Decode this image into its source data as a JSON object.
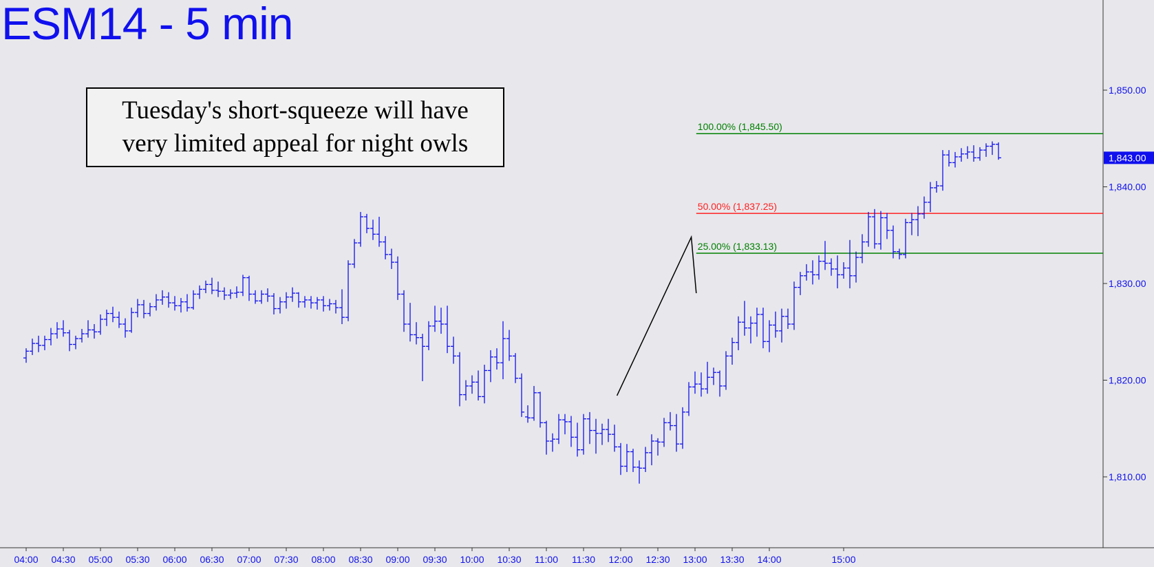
{
  "title": "ESM14 - 5 min",
  "annotation": {
    "line1": "Tuesday's short-squeeze will have",
    "line2": "very limited appeal for night owls"
  },
  "colors": {
    "background": "#e8e8ec",
    "bars": "#1010ee",
    "title": "#1010ee",
    "fib_green": "#008000",
    "fib_red": "#ff2020",
    "pattern_line": "#000000",
    "last_price_bg": "#1010ee"
  },
  "chart_data": {
    "type": "ohlc",
    "title": "ESM14 - 5 min",
    "y_axis": {
      "side": "right",
      "ticks": [
        1810,
        1820,
        1830,
        1840,
        1850
      ],
      "tick_labels": [
        "1,810.00",
        "1,820.00",
        "1,830.00",
        "1,840.00",
        "1,850.00"
      ],
      "range": [
        1802.7,
        1859.0
      ]
    },
    "x_axis": {
      "ticks": [
        "04:00",
        "04:30",
        "05:00",
        "05:30",
        "06:00",
        "06:30",
        "07:00",
        "07:30",
        "08:00",
        "08:30",
        "09:00",
        "09:30",
        "10:00",
        "10:30",
        "11:00",
        "11:30",
        "12:00",
        "12:30",
        "13:00",
        "13:30",
        "14:00",
        "15:00"
      ],
      "tick_minutes": [
        240,
        270,
        300,
        330,
        360,
        390,
        420,
        450,
        480,
        510,
        540,
        570,
        600,
        630,
        660,
        690,
        720,
        750,
        780,
        810,
        840,
        900
      ]
    },
    "last_price": {
      "value": 1843.0,
      "label": "1,843.00"
    },
    "fib_levels": [
      {
        "label": "100.00% (1,845.50)",
        "value": 1845.5,
        "color": "green"
      },
      {
        "label": "50.00% (1,837.25)",
        "value": 1837.25,
        "color": "red"
      },
      {
        "label": "25.00% (1,833.13)",
        "value": 1833.13,
        "color": "green"
      }
    ],
    "fib_start_minute": 781,
    "abc_pattern": [
      {
        "minute": 717,
        "price": 1818.4
      },
      {
        "minute": 777,
        "price": 1834.8
      },
      {
        "minute": 781,
        "price": 1829.0
      }
    ],
    "ohlc_start_minute": 240,
    "ohlc_interval_minutes": 5,
    "bars": [
      [
        1822.3,
        1823.3,
        1821.8,
        1823.0
      ],
      [
        1823.0,
        1824.3,
        1822.6,
        1823.8
      ],
      [
        1823.8,
        1824.6,
        1822.9,
        1823.6
      ],
      [
        1823.6,
        1824.6,
        1823.1,
        1824.2
      ],
      [
        1824.2,
        1825.4,
        1823.6,
        1824.8
      ],
      [
        1824.8,
        1826.0,
        1824.3,
        1825.3
      ],
      [
        1825.3,
        1826.2,
        1824.5,
        1824.9
      ],
      [
        1824.9,
        1825.2,
        1823.0,
        1823.7
      ],
      [
        1823.7,
        1824.6,
        1823.2,
        1824.3
      ],
      [
        1824.3,
        1825.3,
        1823.9,
        1824.8
      ],
      [
        1824.8,
        1826.2,
        1824.4,
        1825.2
      ],
      [
        1825.2,
        1825.8,
        1824.3,
        1825.0
      ],
      [
        1825.0,
        1826.8,
        1824.7,
        1826.3
      ],
      [
        1826.3,
        1827.3,
        1825.6,
        1826.9
      ],
      [
        1826.9,
        1827.6,
        1826.0,
        1826.5
      ],
      [
        1826.5,
        1827.1,
        1825.4,
        1825.8
      ],
      [
        1825.8,
        1826.4,
        1824.4,
        1825.1
      ],
      [
        1825.1,
        1827.5,
        1824.9,
        1827.0
      ],
      [
        1827.0,
        1828.4,
        1826.5,
        1827.8
      ],
      [
        1827.8,
        1828.3,
        1826.4,
        1826.9
      ],
      [
        1826.9,
        1828.0,
        1826.6,
        1827.6
      ],
      [
        1827.6,
        1828.9,
        1827.2,
        1828.3
      ],
      [
        1828.3,
        1829.3,
        1827.8,
        1828.6
      ],
      [
        1828.6,
        1829.1,
        1827.5,
        1828.0
      ],
      [
        1828.0,
        1828.7,
        1827.2,
        1827.7
      ],
      [
        1827.7,
        1828.5,
        1827.0,
        1828.1
      ],
      [
        1828.1,
        1828.9,
        1827.1,
        1827.5
      ],
      [
        1827.5,
        1829.3,
        1827.3,
        1828.9
      ],
      [
        1828.9,
        1829.8,
        1828.4,
        1829.4
      ],
      [
        1829.4,
        1830.3,
        1829.0,
        1829.9
      ],
      [
        1829.9,
        1830.6,
        1828.9,
        1829.3
      ],
      [
        1829.3,
        1830.2,
        1828.6,
        1829.2
      ],
      [
        1829.2,
        1829.6,
        1828.3,
        1828.8
      ],
      [
        1828.8,
        1829.4,
        1828.4,
        1829.0
      ],
      [
        1829.0,
        1829.7,
        1828.5,
        1829.1
      ],
      [
        1829.1,
        1830.9,
        1828.7,
        1830.6
      ],
      [
        1830.6,
        1830.8,
        1828.2,
        1828.9
      ],
      [
        1828.9,
        1829.3,
        1827.9,
        1828.2
      ],
      [
        1828.2,
        1829.3,
        1827.9,
        1828.9
      ],
      [
        1828.9,
        1829.5,
        1828.1,
        1828.7
      ],
      [
        1828.7,
        1829.0,
        1826.8,
        1827.4
      ],
      [
        1827.4,
        1828.6,
        1826.9,
        1828.1
      ],
      [
        1828.1,
        1829.1,
        1827.4,
        1828.6
      ],
      [
        1828.6,
        1829.6,
        1828.1,
        1829.0
      ],
      [
        1829.0,
        1829.1,
        1827.5,
        1828.1
      ],
      [
        1828.1,
        1828.7,
        1827.5,
        1828.3
      ],
      [
        1828.3,
        1828.7,
        1827.4,
        1828.0
      ],
      [
        1828.0,
        1828.6,
        1827.3,
        1828.3
      ],
      [
        1828.3,
        1828.7,
        1827.1,
        1827.7
      ],
      [
        1827.7,
        1828.4,
        1827.2,
        1827.9
      ],
      [
        1827.9,
        1828.3,
        1826.9,
        1827.5
      ],
      [
        1827.5,
        1829.4,
        1825.8,
        1826.5
      ],
      [
        1826.5,
        1832.4,
        1826.1,
        1832.0
      ],
      [
        1832.0,
        1834.6,
        1831.6,
        1834.2
      ],
      [
        1834.2,
        1837.4,
        1833.8,
        1836.9
      ],
      [
        1836.9,
        1837.2,
        1835.2,
        1835.7
      ],
      [
        1835.7,
        1836.6,
        1834.5,
        1835.1
      ],
      [
        1835.1,
        1836.9,
        1833.8,
        1834.3
      ],
      [
        1834.3,
        1834.9,
        1832.5,
        1833.0
      ],
      [
        1833.0,
        1833.6,
        1831.5,
        1832.2
      ],
      [
        1832.2,
        1832.8,
        1828.3,
        1828.9
      ],
      [
        1828.9,
        1829.3,
        1825.0,
        1825.8
      ],
      [
        1825.8,
        1828.0,
        1824.0,
        1824.7
      ],
      [
        1824.7,
        1826.0,
        1823.7,
        1824.4
      ],
      [
        1824.4,
        1824.8,
        1819.9,
        1823.5
      ],
      [
        1823.5,
        1826.1,
        1823.1,
        1825.6
      ],
      [
        1825.6,
        1827.7,
        1825.0,
        1826.1
      ],
      [
        1826.1,
        1827.5,
        1824.8,
        1825.8
      ],
      [
        1825.8,
        1827.7,
        1822.8,
        1823.5
      ],
      [
        1823.5,
        1824.5,
        1821.7,
        1822.5
      ],
      [
        1822.5,
        1822.9,
        1817.3,
        1818.5
      ],
      [
        1818.5,
        1820.0,
        1817.9,
        1819.4
      ],
      [
        1819.4,
        1820.5,
        1818.6,
        1819.8
      ],
      [
        1819.8,
        1821.0,
        1817.9,
        1818.3
      ],
      [
        1818.3,
        1821.6,
        1817.6,
        1821.0
      ],
      [
        1821.0,
        1823.1,
        1819.8,
        1822.4
      ],
      [
        1822.4,
        1823.3,
        1821.1,
        1821.8
      ],
      [
        1821.8,
        1826.1,
        1820.1,
        1824.3
      ],
      [
        1824.3,
        1825.2,
        1822.0,
        1822.5
      ],
      [
        1822.5,
        1822.8,
        1819.7,
        1820.2
      ],
      [
        1820.2,
        1820.7,
        1816.2,
        1816.7
      ],
      [
        1816.2,
        1817.4,
        1815.6,
        1816.1
      ],
      [
        1816.1,
        1819.4,
        1815.8,
        1818.7
      ],
      [
        1818.7,
        1818.8,
        1815.1,
        1815.6
      ],
      [
        1815.6,
        1815.8,
        1812.3,
        1813.7
      ],
      [
        1813.7,
        1814.5,
        1812.6,
        1813.9
      ],
      [
        1813.9,
        1816.5,
        1813.4,
        1815.9
      ],
      [
        1815.9,
        1816.5,
        1814.4,
        1815.7
      ],
      [
        1815.7,
        1816.3,
        1813.1,
        1814.1
      ],
      [
        1814.1,
        1815.6,
        1812.1,
        1812.8
      ],
      [
        1812.8,
        1816.5,
        1812.3,
        1816.0
      ],
      [
        1816.0,
        1816.7,
        1813.4,
        1814.8
      ],
      [
        1814.8,
        1816.0,
        1812.4,
        1814.5
      ],
      [
        1814.5,
        1815.5,
        1813.3,
        1814.9
      ],
      [
        1814.9,
        1816.0,
        1813.6,
        1814.4
      ],
      [
        1814.4,
        1815.4,
        1812.6,
        1813.1
      ],
      [
        1813.1,
        1813.5,
        1810.2,
        1811.1
      ],
      [
        1811.1,
        1813.4,
        1810.5,
        1812.6
      ],
      [
        1812.6,
        1812.9,
        1810.5,
        1811.0
      ],
      [
        1811.0,
        1811.7,
        1809.3,
        1810.9
      ],
      [
        1810.9,
        1813.1,
        1810.5,
        1812.5
      ],
      [
        1812.5,
        1814.4,
        1811.2,
        1813.7
      ],
      [
        1813.7,
        1814.0,
        1812.2,
        1813.6
      ],
      [
        1813.6,
        1816.1,
        1813.1,
        1815.6
      ],
      [
        1815.6,
        1816.7,
        1814.8,
        1815.3
      ],
      [
        1815.3,
        1816.5,
        1812.6,
        1813.4
      ],
      [
        1813.4,
        1817.2,
        1812.9,
        1816.7
      ],
      [
        1816.7,
        1819.8,
        1816.3,
        1819.3
      ],
      [
        1819.3,
        1820.9,
        1818.6,
        1819.6
      ],
      [
        1819.6,
        1820.8,
        1818.3,
        1819.1
      ],
      [
        1819.1,
        1821.9,
        1818.6,
        1820.3
      ],
      [
        1820.3,
        1821.3,
        1819.5,
        1820.8
      ],
      [
        1820.8,
        1821.0,
        1818.3,
        1819.4
      ],
      [
        1819.4,
        1823.0,
        1819.0,
        1822.5
      ],
      [
        1822.5,
        1824.4,
        1821.6,
        1823.9
      ],
      [
        1823.9,
        1826.6,
        1823.1,
        1826.0
      ],
      [
        1826.0,
        1828.2,
        1824.6,
        1825.4
      ],
      [
        1825.4,
        1826.6,
        1823.8,
        1825.9
      ],
      [
        1825.9,
        1827.5,
        1824.5,
        1826.8
      ],
      [
        1826.8,
        1827.5,
        1823.3,
        1824.0
      ],
      [
        1824.0,
        1826.2,
        1822.9,
        1825.7
      ],
      [
        1825.7,
        1827.1,
        1824.4,
        1825.1
      ],
      [
        1825.1,
        1827.4,
        1823.9,
        1826.6
      ],
      [
        1826.6,
        1827.4,
        1825.3,
        1825.8
      ],
      [
        1825.8,
        1830.2,
        1825.2,
        1829.6
      ],
      [
        1829.6,
        1831.2,
        1828.8,
        1830.8
      ],
      [
        1830.8,
        1832.0,
        1830.3,
        1831.2
      ],
      [
        1831.2,
        1832.4,
        1829.9,
        1830.9
      ],
      [
        1830.9,
        1832.9,
        1830.4,
        1832.3
      ],
      [
        1832.3,
        1834.4,
        1831.4,
        1832.1
      ],
      [
        1832.1,
        1832.6,
        1830.8,
        1831.5
      ],
      [
        1831.5,
        1832.9,
        1829.5,
        1830.9
      ],
      [
        1830.9,
        1832.2,
        1830.5,
        1831.6
      ],
      [
        1831.6,
        1834.5,
        1829.5,
        1830.8
      ],
      [
        1830.8,
        1833.3,
        1830.1,
        1832.7
      ],
      [
        1832.7,
        1835.1,
        1832.1,
        1834.3
      ],
      [
        1834.3,
        1837.4,
        1833.8,
        1836.9
      ],
      [
        1836.9,
        1837.7,
        1833.6,
        1834.1
      ],
      [
        1834.1,
        1837.5,
        1833.5,
        1836.8
      ],
      [
        1836.8,
        1837.3,
        1834.6,
        1835.5
      ],
      [
        1835.5,
        1836.0,
        1832.6,
        1833.3
      ],
      [
        1833.3,
        1833.6,
        1832.5,
        1833.0
      ],
      [
        1833.0,
        1836.7,
        1832.6,
        1836.3
      ],
      [
        1836.3,
        1837.3,
        1835.0,
        1836.6
      ],
      [
        1836.6,
        1838.0,
        1834.9,
        1837.2
      ],
      [
        1837.2,
        1839.0,
        1836.7,
        1838.4
      ],
      [
        1838.4,
        1840.5,
        1837.4,
        1839.9
      ],
      [
        1839.9,
        1840.6,
        1839.4,
        1840.1
      ],
      [
        1840.1,
        1843.8,
        1839.6,
        1843.3
      ],
      [
        1843.3,
        1843.8,
        1842.1,
        1842.5
      ],
      [
        1842.5,
        1843.6,
        1842.0,
        1843.1
      ],
      [
        1843.1,
        1844.0,
        1842.6,
        1843.4
      ],
      [
        1843.4,
        1844.2,
        1842.9,
        1843.6
      ],
      [
        1843.6,
        1844.3,
        1842.6,
        1843.0
      ],
      [
        1843.0,
        1844.1,
        1842.7,
        1843.8
      ],
      [
        1843.8,
        1844.5,
        1843.1,
        1844.2
      ],
      [
        1844.2,
        1844.7,
        1843.3,
        1844.4
      ],
      [
        1844.4,
        1844.6,
        1842.8,
        1843.0
      ]
    ]
  }
}
